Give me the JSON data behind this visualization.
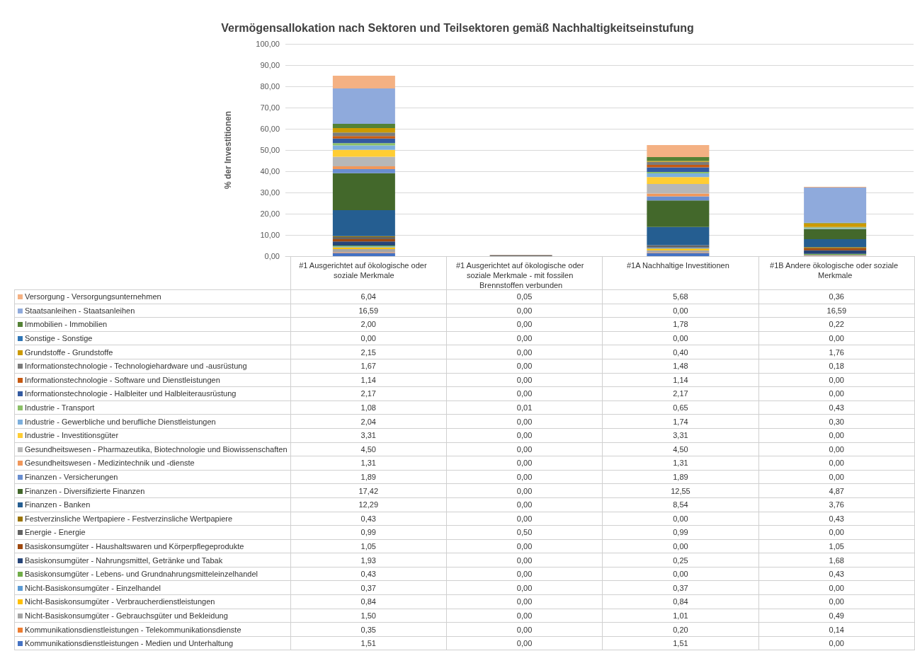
{
  "chart_data": {
    "type": "bar",
    "stacked": true,
    "title": "Vermögensallokation nach Sektoren und Teilsektoren gemäß Nachhaltigkeitseinstufung",
    "ylabel": "% der Investitionen",
    "categories": [
      "#1 Ausgerichtet auf ökologische oder soziale Merkmale",
      "#1 Ausgerichtet auf ökologische oder soziale Merkmale - mit fossilen Brennstoffen verbunden",
      "#1A Nachhaltige Investitionen",
      "#1B Andere ökologische oder soziale Merkmale"
    ],
    "ylim": [
      0,
      100
    ],
    "yticks": [
      {
        "value": 0,
        "label": "0,00"
      },
      {
        "value": 10,
        "label": "10,00"
      },
      {
        "value": 20,
        "label": "20,00"
      },
      {
        "value": 30,
        "label": "30,00"
      },
      {
        "value": 40,
        "label": "40,00"
      },
      {
        "value": 50,
        "label": "50,00"
      },
      {
        "value": 60,
        "label": "60,00"
      },
      {
        "value": 70,
        "label": "70,00"
      },
      {
        "value": 80,
        "label": "80,00"
      },
      {
        "value": 90,
        "label": "90,00"
      },
      {
        "value": 100,
        "label": "100,00"
      }
    ],
    "grid": "y",
    "legend": "bottom",
    "series": [
      {
        "name": "Kommunikationsdienstleistungen - Medien und Unterhaltung",
        "color": "#4472c4",
        "values": [
          1.51,
          0.0,
          1.51,
          0.0
        ],
        "value_labels": [
          "1,51",
          "0,00",
          "1,51",
          "0,00"
        ]
      },
      {
        "name": "Kommunikationsdienstleistungen - Telekommunikationsdienste",
        "color": "#ed7d31",
        "values": [
          0.35,
          0.0,
          0.2,
          0.14
        ],
        "value_labels": [
          "0,35",
          "0,00",
          "0,20",
          "0,14"
        ]
      },
      {
        "name": "Nicht-Basiskonsumgüter - Gebrauchsgüter und Bekleidung",
        "color": "#a5a5a5",
        "values": [
          1.5,
          0.0,
          1.01,
          0.49
        ],
        "value_labels": [
          "1,50",
          "0,00",
          "1,01",
          "0,49"
        ]
      },
      {
        "name": "Nicht-Basiskonsumgüter - Verbraucherdienstleistungen",
        "color": "#ffc000",
        "values": [
          0.84,
          0.0,
          0.84,
          0.0
        ],
        "value_labels": [
          "0,84",
          "0,00",
          "0,84",
          "0,00"
        ]
      },
      {
        "name": "Nicht-Basiskonsumgüter - Einzelhandel",
        "color": "#5b9bd5",
        "values": [
          0.37,
          0.0,
          0.37,
          0.0
        ],
        "value_labels": [
          "0,37",
          "0,00",
          "0,37",
          "0,00"
        ]
      },
      {
        "name": "Basiskonsumgüter - Lebens- und Grundnahrungsmitteleinzelhandel",
        "color": "#70ad47",
        "values": [
          0.43,
          0.0,
          0.0,
          0.43
        ],
        "value_labels": [
          "0,43",
          "0,00",
          "0,00",
          "0,43"
        ]
      },
      {
        "name": "Basiskonsumgüter - Nahrungsmittel, Getränke und Tabak",
        "color": "#264478",
        "values": [
          1.93,
          0.0,
          0.25,
          1.68
        ],
        "value_labels": [
          "1,93",
          "0,00",
          "0,25",
          "1,68"
        ]
      },
      {
        "name": "Basiskonsumgüter - Haushaltswaren und Körperpflegeprodukte",
        "color": "#9e480e",
        "values": [
          1.05,
          0.0,
          0.0,
          1.05
        ],
        "value_labels": [
          "1,05",
          "0,00",
          "0,00",
          "1,05"
        ]
      },
      {
        "name": "Energie - Energie",
        "color": "#636363",
        "values": [
          0.99,
          0.5,
          0.99,
          0.0
        ],
        "value_labels": [
          "0,99",
          "0,50",
          "0,99",
          "0,00"
        ]
      },
      {
        "name": "Festverzinsliche Wertpapiere - Festverzinsliche Wertpapiere",
        "color": "#997300",
        "values": [
          0.43,
          0.0,
          0.0,
          0.43
        ],
        "value_labels": [
          "0,43",
          "0,00",
          "0,00",
          "0,43"
        ]
      },
      {
        "name": "Finanzen - Banken",
        "color": "#255e91",
        "values": [
          12.29,
          0.0,
          8.54,
          3.76
        ],
        "value_labels": [
          "12,29",
          "0,00",
          "8,54",
          "3,76"
        ]
      },
      {
        "name": "Finanzen - Diversifizierte Finanzen",
        "color": "#43682b",
        "values": [
          17.42,
          0.0,
          12.55,
          4.87
        ],
        "value_labels": [
          "17,42",
          "0,00",
          "12,55",
          "4,87"
        ]
      },
      {
        "name": "Finanzen - Versicherungen",
        "color": "#698ed0",
        "values": [
          1.89,
          0.0,
          1.89,
          0.0
        ],
        "value_labels": [
          "1,89",
          "0,00",
          "1,89",
          "0,00"
        ]
      },
      {
        "name": "Gesundheitswesen - Medizintechnik und -dienste",
        "color": "#f1975a",
        "values": [
          1.31,
          0.0,
          1.31,
          0.0
        ],
        "value_labels": [
          "1,31",
          "0,00",
          "1,31",
          "0,00"
        ]
      },
      {
        "name": "Gesundheitswesen - Pharmazeutika, Biotechnologie und Biowissenschaften",
        "color": "#b7b7b7",
        "values": [
          4.5,
          0.0,
          4.5,
          0.0
        ],
        "value_labels": [
          "4,50",
          "0,00",
          "4,50",
          "0,00"
        ]
      },
      {
        "name": "Industrie - Investitionsgüter",
        "color": "#ffcd33",
        "values": [
          3.31,
          0.0,
          3.31,
          0.0
        ],
        "value_labels": [
          "3,31",
          "0,00",
          "3,31",
          "0,00"
        ]
      },
      {
        "name": "Industrie - Gewerbliche und berufliche Dienstleistungen",
        "color": "#7cafdd",
        "values": [
          2.04,
          0.0,
          1.74,
          0.3
        ],
        "value_labels": [
          "2,04",
          "0,00",
          "1,74",
          "0,30"
        ]
      },
      {
        "name": "Industrie - Transport",
        "color": "#8cc168",
        "values": [
          1.08,
          0.01,
          0.65,
          0.43
        ],
        "value_labels": [
          "1,08",
          "0,01",
          "0,65",
          "0,43"
        ]
      },
      {
        "name": "Informationstechnologie - Halbleiter und Halbleiterausrüstung",
        "color": "#335aa1",
        "values": [
          2.17,
          0.0,
          2.17,
          0.0
        ],
        "value_labels": [
          "2,17",
          "0,00",
          "2,17",
          "0,00"
        ]
      },
      {
        "name": "Informationstechnologie - Software und Dienstleistungen",
        "color": "#c65911",
        "values": [
          1.14,
          0.0,
          1.14,
          0.0
        ],
        "value_labels": [
          "1,14",
          "0,00",
          "1,14",
          "0,00"
        ]
      },
      {
        "name": "Informationstechnologie - Technologiehardware und -ausrüstung",
        "color": "#7b7b7b",
        "values": [
          1.67,
          0.0,
          1.48,
          0.18
        ],
        "value_labels": [
          "1,67",
          "0,00",
          "1,48",
          "0,18"
        ]
      },
      {
        "name": "Grundstoffe - Grundstoffe",
        "color": "#cc9a00",
        "values": [
          2.15,
          0.0,
          0.4,
          1.76
        ],
        "value_labels": [
          "2,15",
          "0,00",
          "0,40",
          "1,76"
        ]
      },
      {
        "name": "Sonstige - Sonstige",
        "color": "#2e75b6",
        "values": [
          0.0,
          0.0,
          0.0,
          0.0
        ],
        "value_labels": [
          "0,00",
          "0,00",
          "0,00",
          "0,00"
        ]
      },
      {
        "name": "Immobilien - Immobilien",
        "color": "#548235",
        "values": [
          2.0,
          0.0,
          1.78,
          0.22
        ],
        "value_labels": [
          "2,00",
          "0,00",
          "1,78",
          "0,22"
        ]
      },
      {
        "name": "Staatsanleihen - Staatsanleihen",
        "color": "#8faadc",
        "values": [
          16.59,
          0.0,
          0.0,
          16.59
        ],
        "value_labels": [
          "16,59",
          "0,00",
          "0,00",
          "16,59"
        ]
      },
      {
        "name": "Versorgung - Versorgungsunternehmen",
        "color": "#f4b183",
        "values": [
          6.04,
          0.05,
          5.68,
          0.36
        ],
        "value_labels": [
          "6,04",
          "0,05",
          "5,68",
          "0,36"
        ]
      }
    ]
  }
}
